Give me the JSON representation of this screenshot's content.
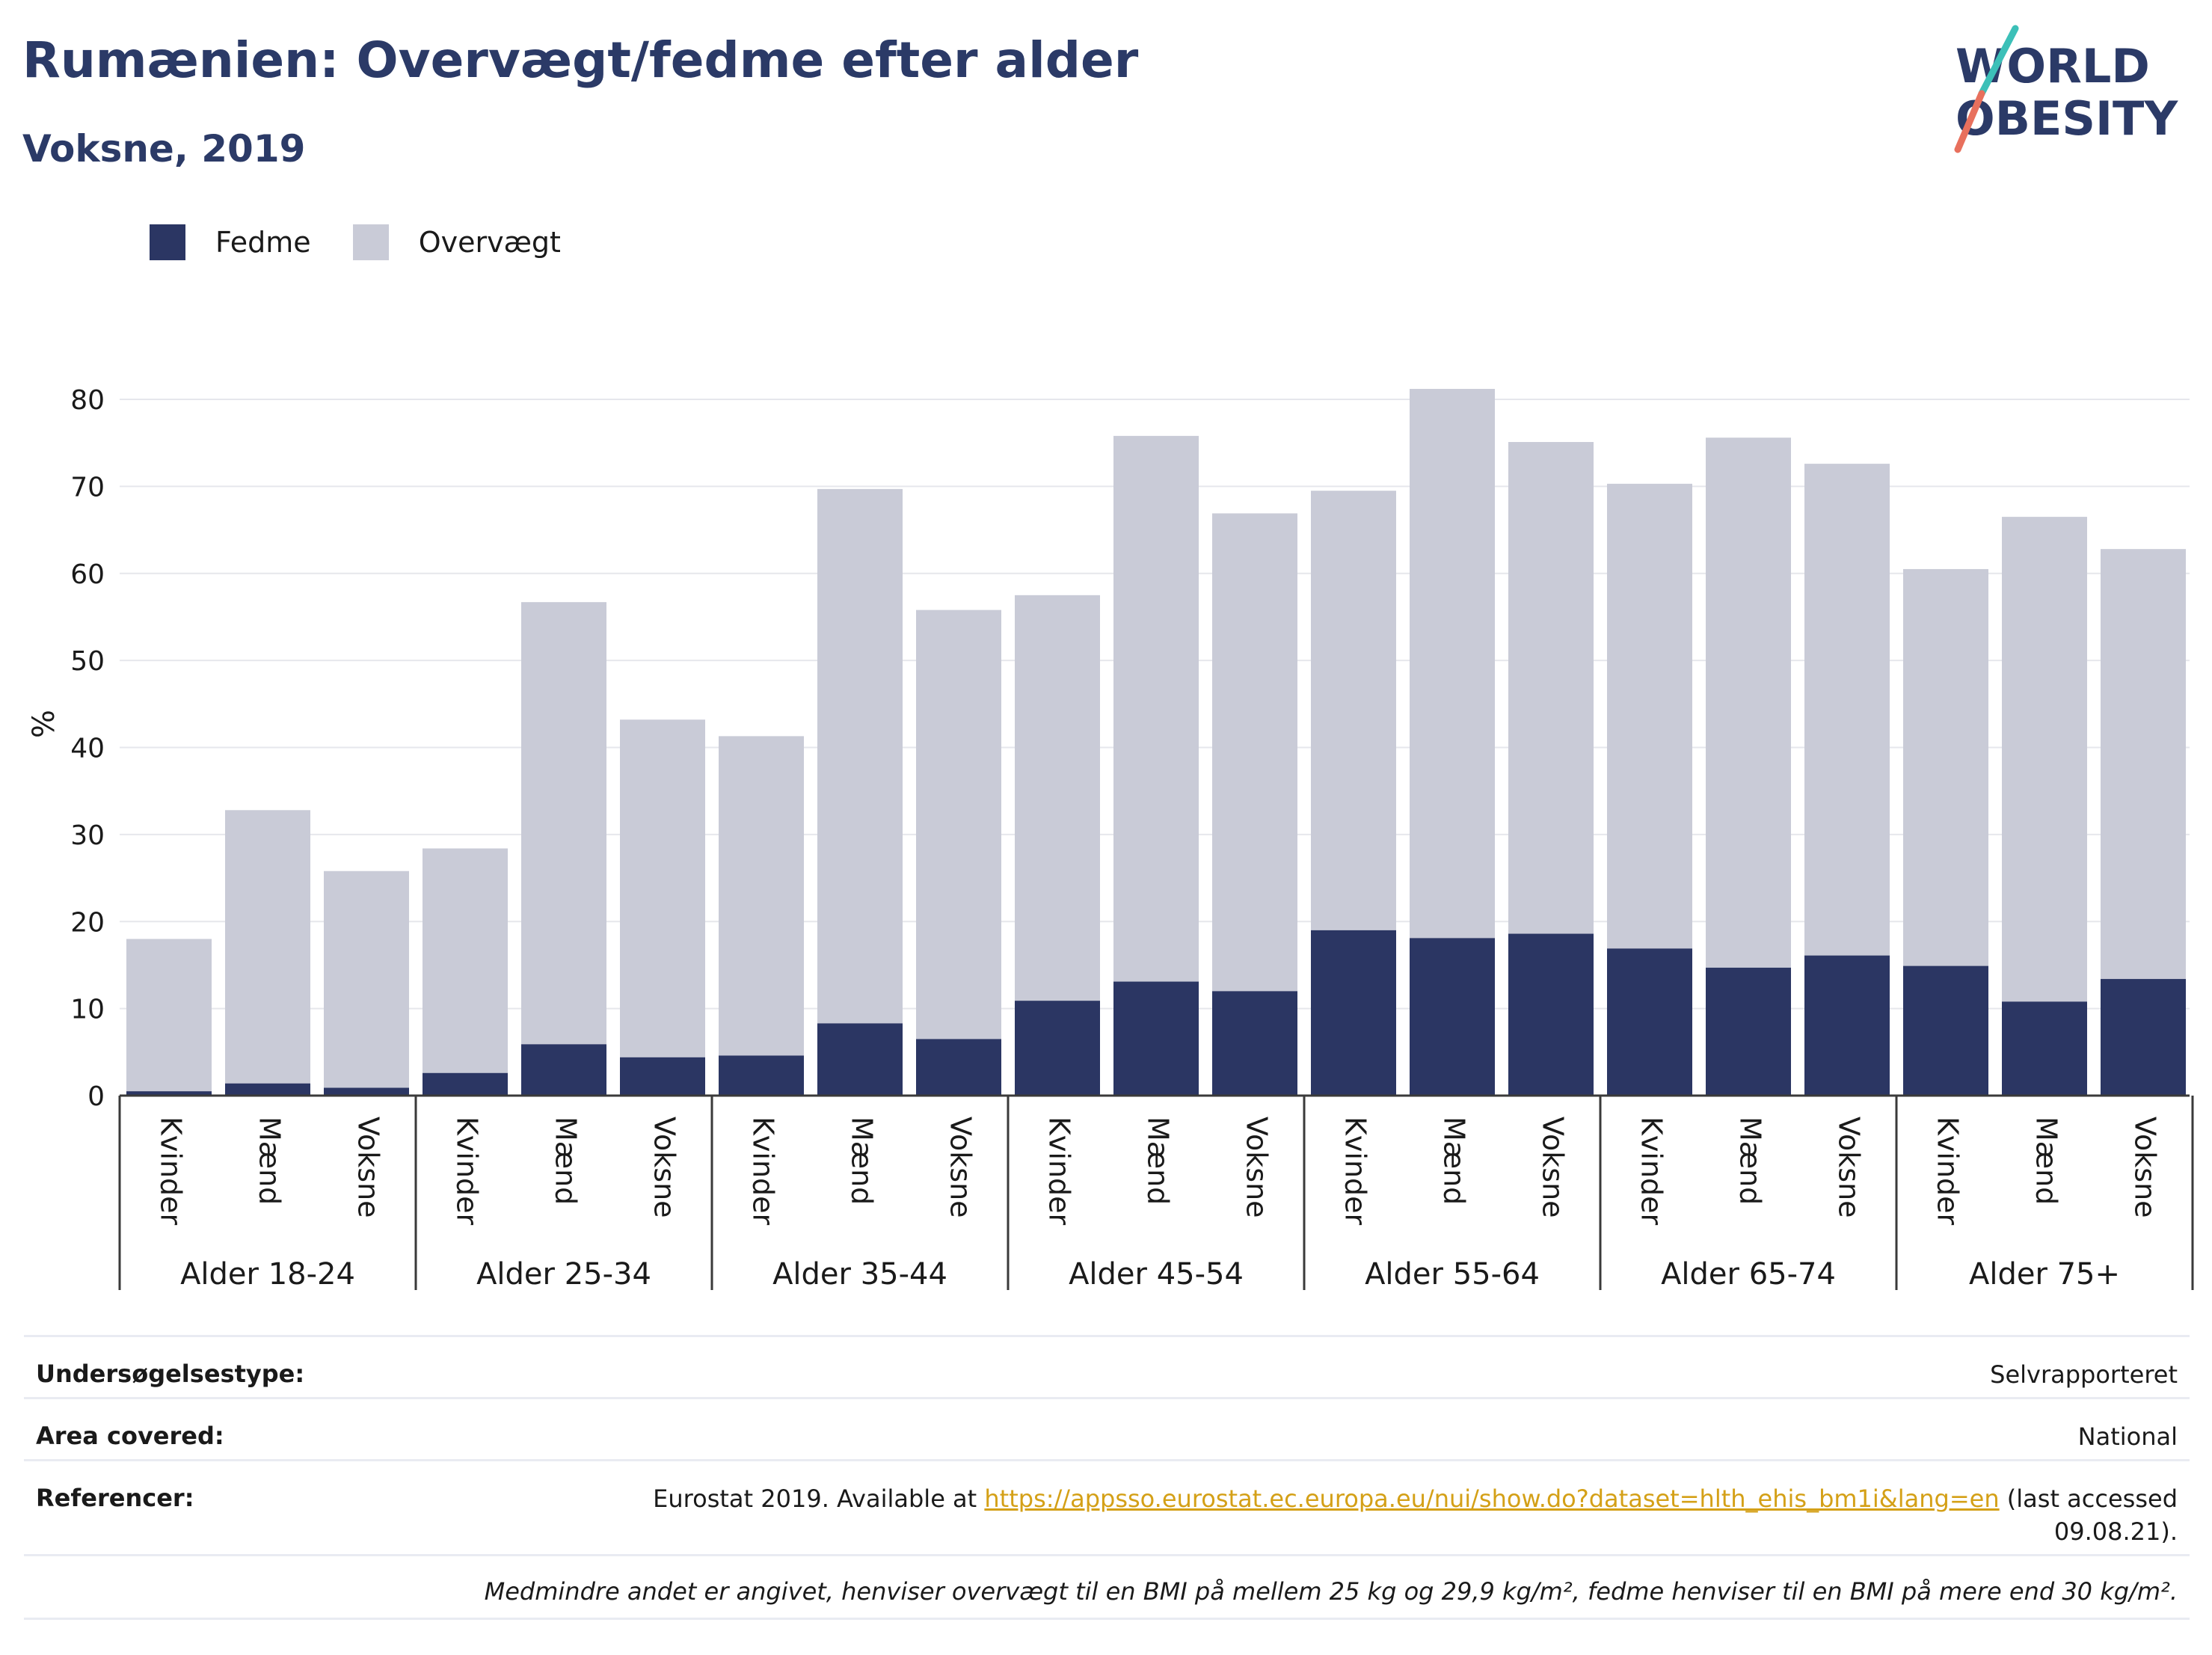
{
  "header": {
    "title": "Rumænien: Overvægt/fedme efter alder",
    "subtitle": "Voksne, 2019",
    "logo_line1": "WORLD",
    "logo_line2": "OBESITY"
  },
  "colors": {
    "fedme": "#2b3663",
    "overvaegt": "#c9cbd7",
    "title": "#2b3a67",
    "logo_teal": "#3cc0b8",
    "logo_coral": "#e8705d",
    "link": "#d4a017"
  },
  "legend": {
    "items": [
      {
        "label": "Fedme",
        "color": "#2b3663"
      },
      {
        "label": "Overvægt",
        "color": "#c9cbd7"
      }
    ]
  },
  "chart_data": {
    "type": "bar",
    "stacked": true,
    "ylabel": "%",
    "ylim": [
      0,
      82
    ],
    "yticks": [
      0,
      10,
      20,
      30,
      40,
      50,
      60,
      70,
      80
    ],
    "grid": true,
    "legend_position": "top-left",
    "groups": [
      {
        "label": "Alder 18-24",
        "categories": [
          "Kvinder",
          "Mænd",
          "Voksne"
        ],
        "fedme": [
          0.5,
          1.4,
          0.9
        ],
        "total": [
          18.0,
          32.8,
          25.8
        ]
      },
      {
        "label": "Alder 25-34",
        "categories": [
          "Kvinder",
          "Mænd",
          "Voksne"
        ],
        "fedme": [
          2.6,
          5.9,
          4.4
        ],
        "total": [
          28.4,
          56.7,
          43.2
        ]
      },
      {
        "label": "Alder 35-44",
        "categories": [
          "Kvinder",
          "Mænd",
          "Voksne"
        ],
        "fedme": [
          4.6,
          8.3,
          6.5
        ],
        "total": [
          41.3,
          69.7,
          55.8
        ]
      },
      {
        "label": "Alder 45-54",
        "categories": [
          "Kvinder",
          "Mænd",
          "Voksne"
        ],
        "fedme": [
          10.9,
          13.1,
          12.0
        ],
        "total": [
          57.5,
          75.8,
          66.9
        ]
      },
      {
        "label": "Alder 55-64",
        "categories": [
          "Kvinder",
          "Mænd",
          "Voksne"
        ],
        "fedme": [
          19.0,
          18.1,
          18.6
        ],
        "total": [
          69.5,
          81.2,
          75.1
        ]
      },
      {
        "label": "Alder 65-74",
        "categories": [
          "Kvinder",
          "Mænd",
          "Voksne"
        ],
        "fedme": [
          16.9,
          14.7,
          16.1
        ],
        "total": [
          70.3,
          75.6,
          72.6
        ]
      },
      {
        "label": "Alder 75+",
        "categories": [
          "Kvinder",
          "Mænd",
          "Voksne"
        ],
        "fedme": [
          14.9,
          10.8,
          13.4
        ],
        "total": [
          60.5,
          66.5,
          62.8
        ]
      }
    ]
  },
  "info": {
    "survey_key": "Undersøgelsestype:",
    "survey_val": "Selvrapporteret",
    "area_key": "Area covered:",
    "area_val": "National",
    "ref_key": "Referencer:",
    "ref_pre": "Eurostat 2019. Available at ",
    "ref_link": "https://appsso.eurostat.ec.europa.eu/nui/show.do?dataset=hlth_ehis_bm1i&lang=en",
    "ref_post": " (last accessed",
    "ref_date": "09.08.21).",
    "note": "Medmindre andet er angivet, henviser overvægt til en BMI på mellem 25 kg og 29,9 kg/m², fedme henviser til en BMI på mere end 30 kg/m²."
  }
}
